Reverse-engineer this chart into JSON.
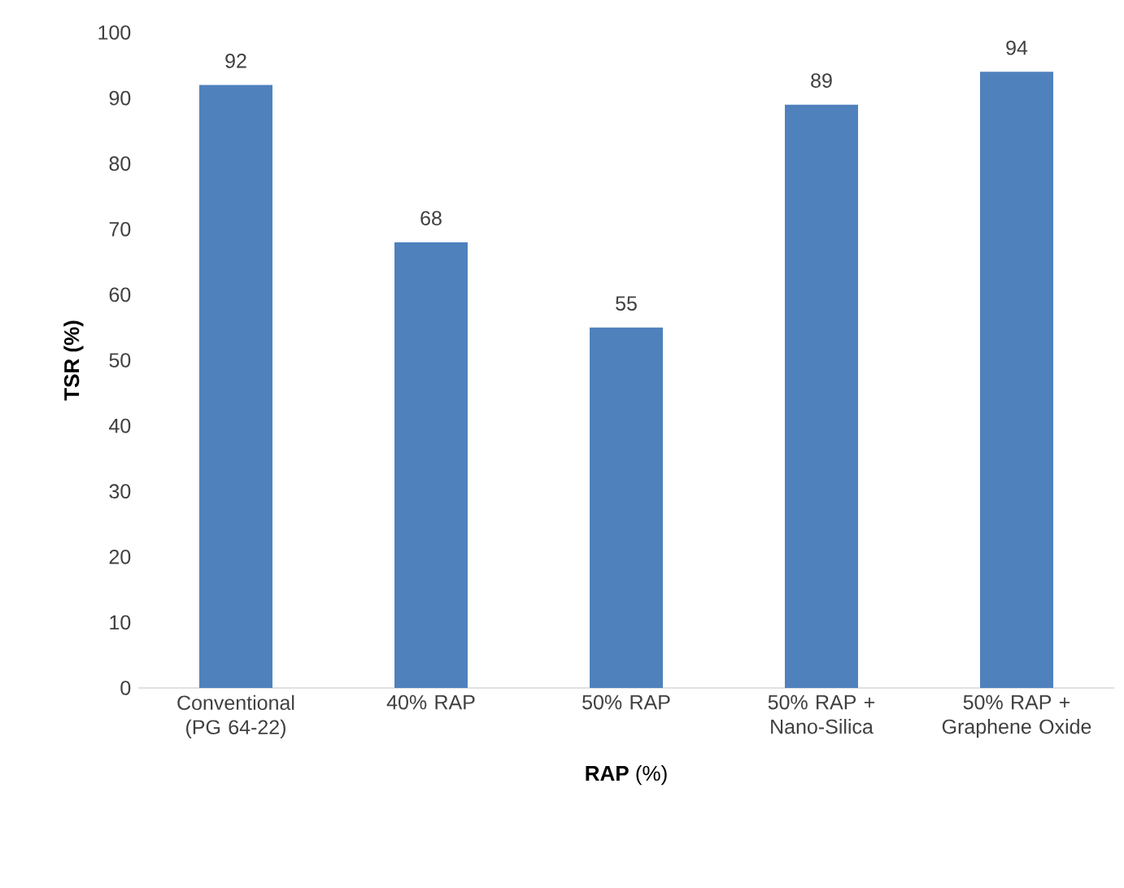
{
  "chart_data": {
    "type": "bar",
    "categories": [
      "Conventional (PG 64-22)",
      "40% RAP",
      "50% RAP",
      "50% RAP + Nano-Silica",
      "50% RAP + Graphene Oxide"
    ],
    "values": [
      92,
      68,
      55,
      89,
      94
    ],
    "color": "#4f81bd",
    "xlabel": "**RAP** (%)",
    "ylabel": "**TSR (%)**",
    "ylim": [
      0,
      100
    ],
    "yticks": [
      0,
      10,
      20,
      30,
      40,
      50,
      60,
      70,
      80,
      90,
      100
    ],
    "data_labels": true
  }
}
